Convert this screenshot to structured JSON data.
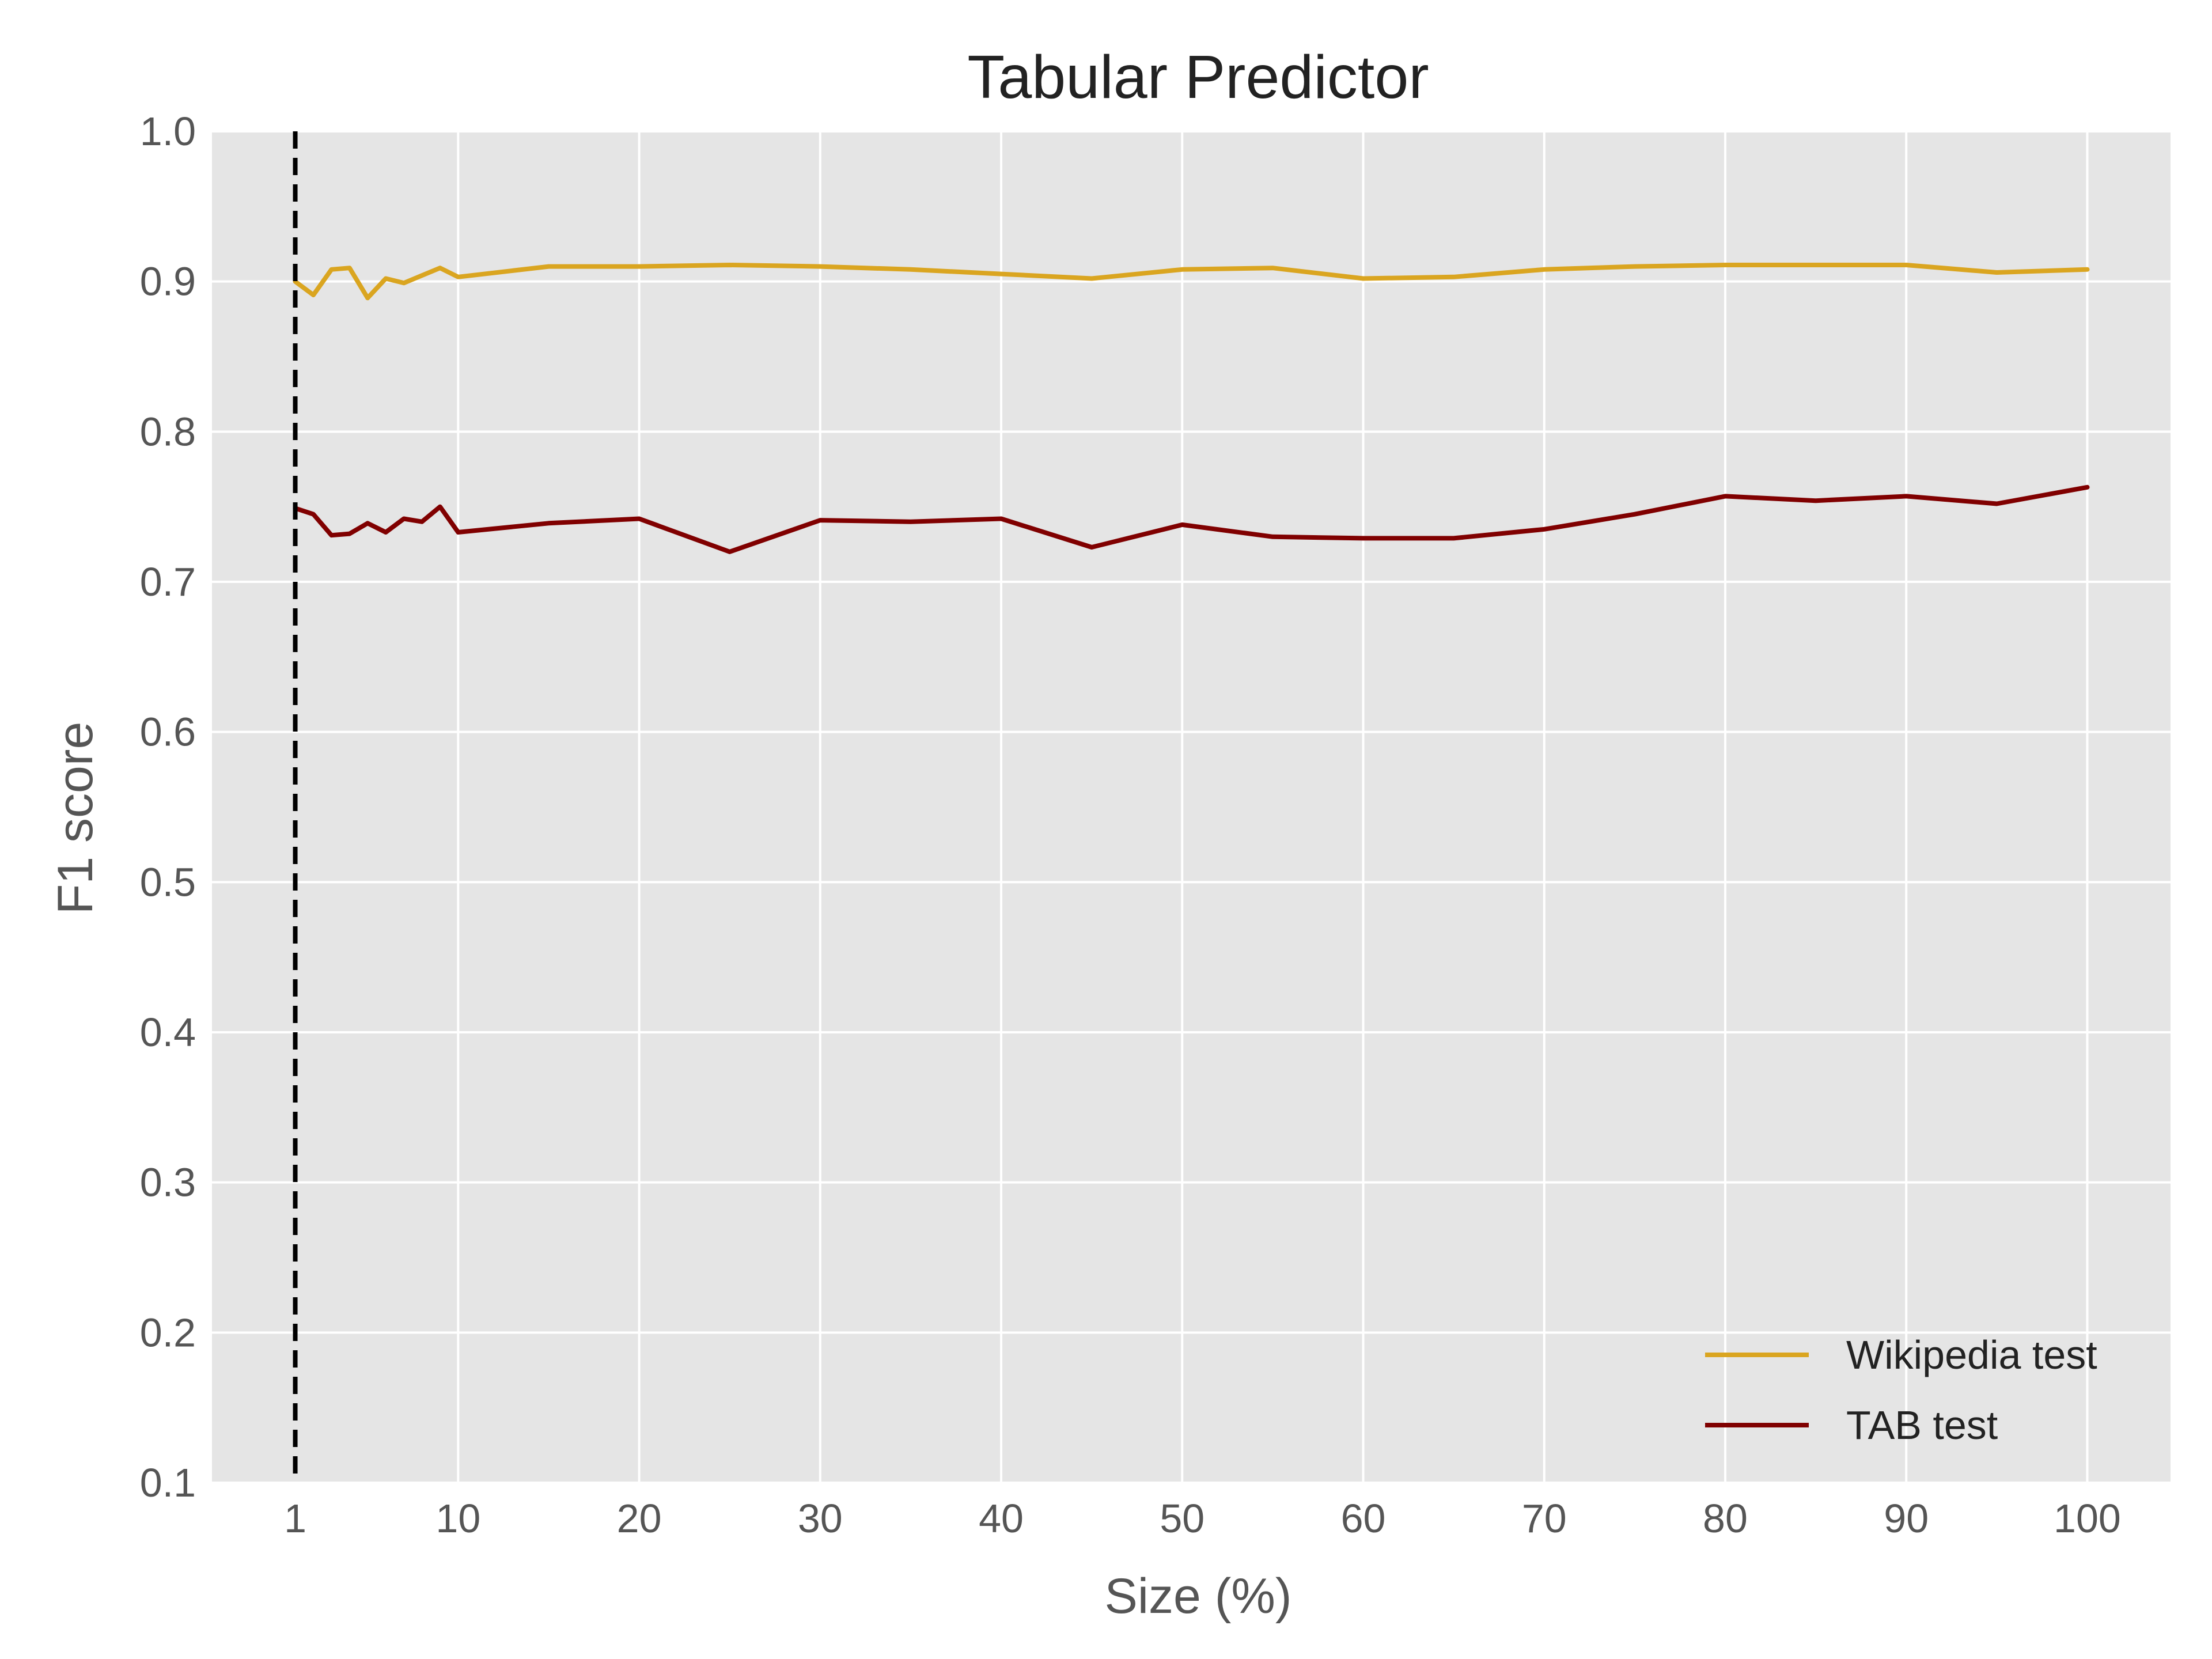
{
  "chart_data": {
    "type": "line",
    "title": "Tabular Predictor",
    "xlabel": "Size (%)",
    "ylabel": "F1 score",
    "xlim": [
      -3.6,
      104.6
    ],
    "ylim": [
      0.1,
      1.0
    ],
    "xticks": [
      1,
      10,
      20,
      30,
      40,
      50,
      60,
      70,
      80,
      90,
      100
    ],
    "xtick_labels": [
      "1",
      "10",
      "20",
      "30",
      "40",
      "50",
      "60",
      "70",
      "80",
      "90",
      "100"
    ],
    "yticks": [
      0.1,
      0.2,
      0.3,
      0.4,
      0.5,
      0.6,
      0.7,
      0.8,
      0.9,
      1.0
    ],
    "ytick_labels": [
      "0.1",
      "0.2",
      "0.3",
      "0.4",
      "0.5",
      "0.6",
      "0.7",
      "0.8",
      "0.9",
      "1.0"
    ],
    "grid": true,
    "legend_position": "lower-right",
    "reference_line": {
      "x": 1,
      "style": "dashed",
      "color": "#000000"
    },
    "x": [
      1,
      2,
      3,
      4,
      5,
      6,
      7,
      8,
      9,
      10,
      15,
      20,
      25,
      30,
      35,
      40,
      45,
      50,
      55,
      60,
      65,
      70,
      75,
      80,
      85,
      90,
      95,
      100
    ],
    "series": [
      {
        "name": "Wikipedia test",
        "color": "#DAA520",
        "values": [
          0.9,
          0.891,
          0.908,
          0.909,
          0.889,
          0.902,
          0.899,
          0.904,
          0.909,
          0.903,
          0.91,
          0.91,
          0.911,
          0.91,
          0.908,
          0.905,
          0.902,
          0.908,
          0.909,
          0.902,
          0.903,
          0.908,
          0.91,
          0.911,
          0.911,
          0.911,
          0.906,
          0.908
        ]
      },
      {
        "name": "TAB test",
        "color": "#800000",
        "values": [
          0.749,
          0.745,
          0.731,
          0.732,
          0.739,
          0.733,
          0.742,
          0.74,
          0.75,
          0.733,
          0.739,
          0.742,
          0.72,
          0.741,
          0.74,
          0.742,
          0.723,
          0.738,
          0.73,
          0.729,
          0.729,
          0.735,
          0.745,
          0.757,
          0.754,
          0.757,
          0.752,
          0.763
        ]
      }
    ],
    "background_color": "#E5E5E5",
    "grid_color": "#FFFFFF"
  }
}
